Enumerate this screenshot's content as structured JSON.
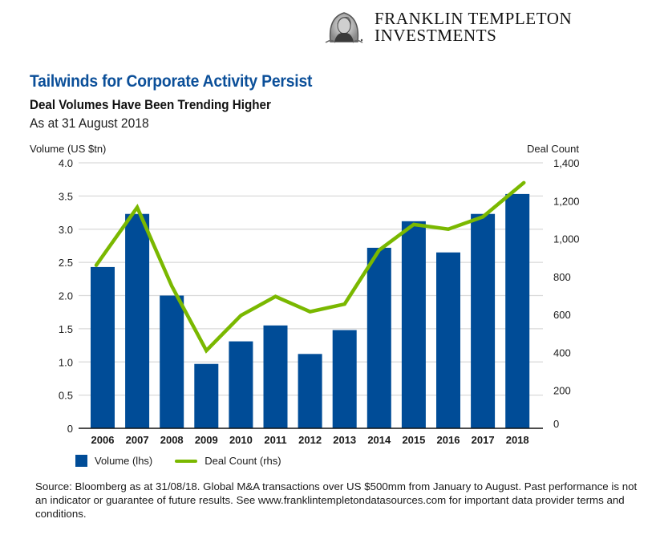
{
  "brand": {
    "name_line1": "FRANKLIN TEMPLETON",
    "name_line2": "INVESTMENTS",
    "logo_icon": "benjamin-franklin-medallion"
  },
  "header": {
    "title": "Tailwinds for Corporate Activity Persist",
    "subtitle": "Deal Volumes Have Been Trending Higher",
    "as_at": "As at 31 August 2018"
  },
  "colors": {
    "title": "#0b4f99",
    "bar": "#004c97",
    "line": "#7ab800",
    "grid": "#d9d9d9",
    "axis": "#111111"
  },
  "chart_data": {
    "type": "bar",
    "title": "Deal Volumes Have Been Trending Higher",
    "categories": [
      "2006",
      "2007",
      "2008",
      "2009",
      "2010",
      "2011",
      "2012",
      "2013",
      "2014",
      "2015",
      "2016",
      "2017",
      "2018"
    ],
    "series": [
      {
        "name": "Volume (lhs)",
        "type": "bar",
        "axis": "left",
        "values": [
          2.43,
          3.23,
          2.0,
          0.97,
          1.31,
          1.55,
          1.12,
          1.48,
          2.72,
          3.12,
          2.65,
          3.23,
          3.53
        ]
      },
      {
        "name": "Deal Count (rhs)",
        "type": "line",
        "axis": "right",
        "values": [
          860,
          1165,
          750,
          410,
          595,
          695,
          615,
          655,
          940,
          1075,
          1050,
          1115,
          1295
        ]
      }
    ],
    "ylabel": "Volume (US $tn)",
    "ylim": [
      0,
      4.0
    ],
    "yticks": [
      "0",
      "0.5",
      "1.0",
      "1.5",
      "2.0",
      "2.5",
      "3.0",
      "3.5",
      "4.0"
    ],
    "ytick_values": [
      0,
      0.5,
      1.0,
      1.5,
      2.0,
      2.5,
      3.0,
      3.5,
      4.0
    ],
    "y2label": "Deal Count",
    "y2lim": [
      0,
      1400
    ],
    "y2ticks": [
      "0",
      "200",
      "400",
      "600",
      "800",
      "1,000",
      "1,200",
      "1,400"
    ],
    "y2tick_values": [
      0,
      200,
      400,
      600,
      800,
      1000,
      1200,
      1400
    ],
    "grid": true,
    "legend_position": "bottom-left"
  },
  "legend": {
    "volume_label": "Volume (lhs)",
    "deal_count_label": "Deal Count (rhs)"
  },
  "footer": {
    "source": "Source: Bloomberg as at 31/08/18. Global M&A transactions over US $500mm from January to August. Past performance is not an indicator or guarantee of future results. See www.franklintempletondatasources.com for important data provider terms and conditions."
  }
}
